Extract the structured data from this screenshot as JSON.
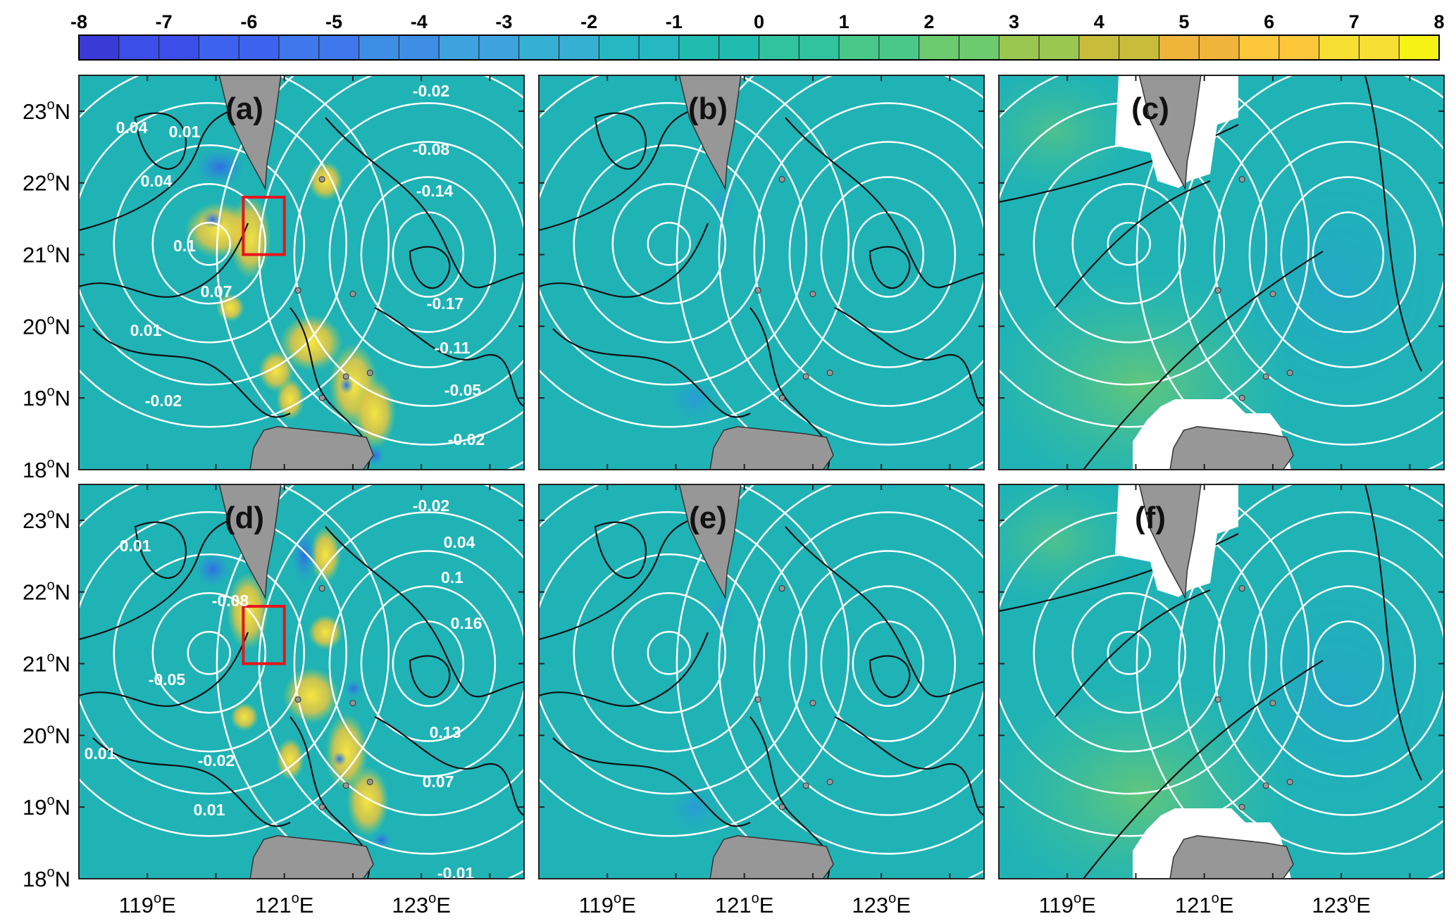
{
  "colorbar": {
    "tick_labels": [
      "-8",
      "-7",
      "-6",
      "-5",
      "-4",
      "-3",
      "-2",
      "-1",
      "0",
      "1",
      "2",
      "3",
      "4",
      "5",
      "6",
      "7",
      "8"
    ],
    "colors": [
      "#3a3bd6",
      "#3b4ee8",
      "#3d62ee",
      "#3f78ec",
      "#3f8ee6",
      "#3ea2de",
      "#36b0d2",
      "#25b8c2",
      "#21bcb0",
      "#30c39e",
      "#48c98a",
      "#6ccb6e",
      "#9ac750",
      "#c8bd3b",
      "#eeb53a",
      "#fcc73a",
      "#f7df33",
      "#f5f215"
    ],
    "num_segments": 34
  },
  "y_ticks": [
    "23",
    "22",
    "21",
    "20",
    "19",
    "18"
  ],
  "y_suffix": "N",
  "x_ticks": [
    "119",
    "121",
    "123"
  ],
  "x_suffix": "E",
  "degree": "o",
  "panels": [
    {
      "label": "(a)",
      "contour_labels": [
        "-0.02",
        "0.04",
        "0.01",
        "-0.08",
        "0.04",
        "-0.14",
        "0.1",
        "0.07",
        "-0.17",
        "0.01",
        "-0.11",
        "-0.05",
        "-0.02",
        "-0.02"
      ],
      "red_box": true
    },
    {
      "label": "(b)",
      "contour_labels": [],
      "red_box": false
    },
    {
      "label": "(c)",
      "contour_labels": [],
      "red_box": false
    },
    {
      "label": "(d)",
      "contour_labels": [
        "-0.02",
        "0.01",
        "0.04",
        "0.1",
        "-0.08",
        "0.16",
        "-0.05",
        "0.01",
        "0.13",
        "-0.02",
        "0.07",
        "0.01",
        "-0.01"
      ],
      "red_box": true
    },
    {
      "label": "(e)",
      "contour_labels": [],
      "red_box": false
    },
    {
      "label": "(f)",
      "contour_labels": [],
      "red_box": false
    }
  ],
  "colors": {
    "ocean": "#1fb3b6",
    "land": "#979797",
    "mask": "#ffffff",
    "contour_white": "#ffffff",
    "contour_black": "#111111",
    "red_box": "#e8141b"
  }
}
